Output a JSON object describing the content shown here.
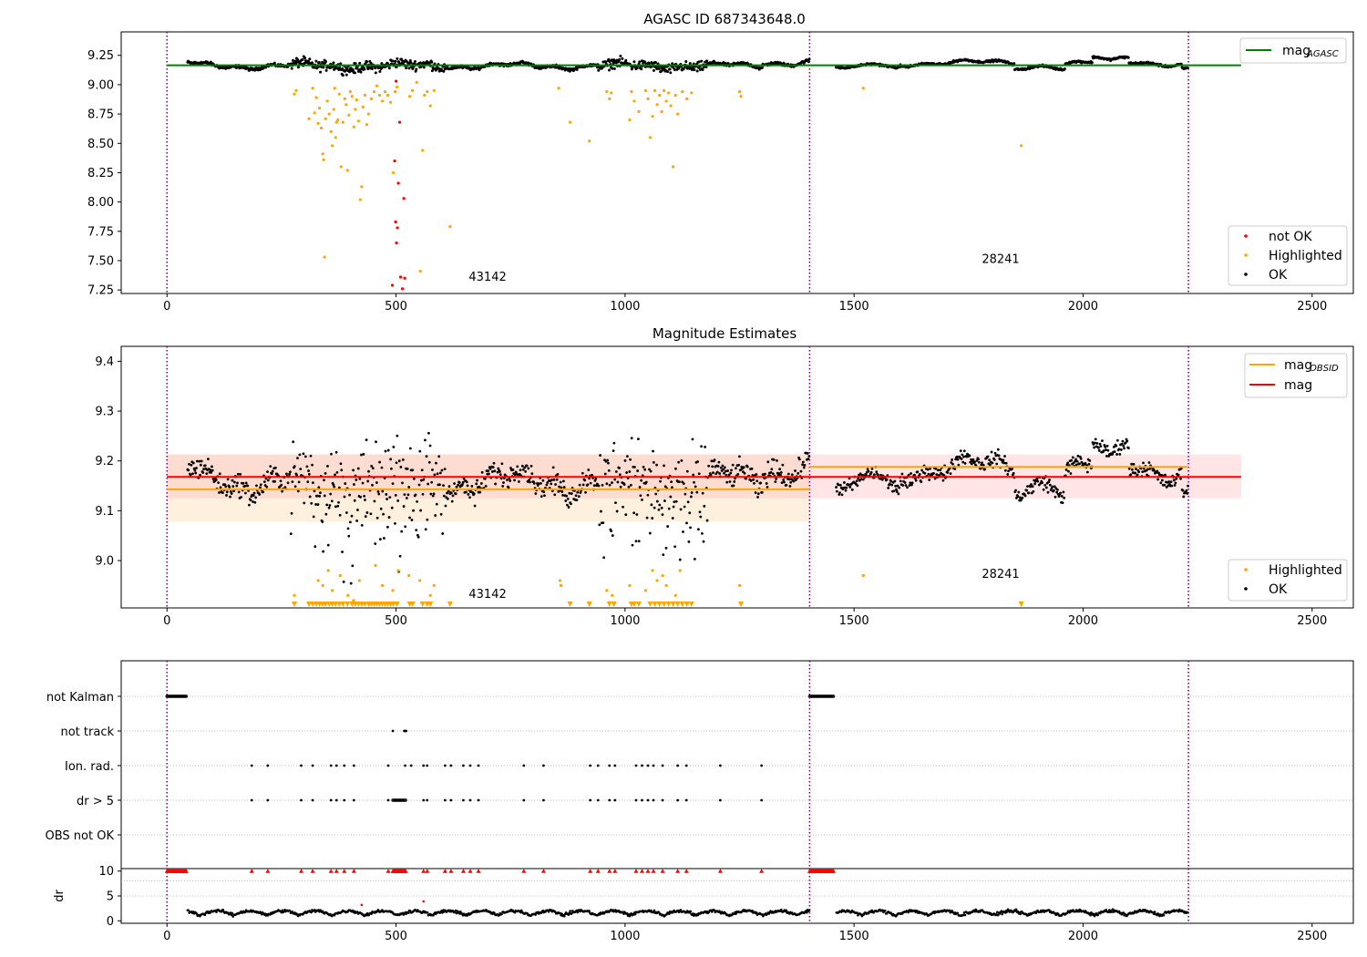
{
  "chart_data": [
    {
      "id": "panel1",
      "type": "scatter",
      "title": "AGASC ID 687343648.0",
      "xlim": [
        -100,
        2590
      ],
      "ylim": [
        7.22,
        9.45
      ],
      "xticks": [
        0,
        500,
        1000,
        1500,
        2000,
        2500
      ],
      "yticks": [
        7.25,
        7.5,
        7.75,
        8.0,
        8.25,
        8.5,
        8.75,
        9.0,
        9.25
      ],
      "ytick_labels": [
        "7.25",
        "7.50",
        "7.75",
        "8.00",
        "8.25",
        "8.50",
        "8.75",
        "9.00",
        "9.25"
      ],
      "obs_boundaries": [
        0,
        1403,
        2230
      ],
      "annotations": [
        {
          "text": "43142",
          "x": 700,
          "y": 7.33
        },
        {
          "text": "28241",
          "x": 1820,
          "y": 7.48
        }
      ],
      "lines": [
        {
          "name": "mag_AGASC",
          "color": "#008000",
          "x": [
            0,
            2345
          ],
          "y": [
            9.165,
            9.165
          ]
        }
      ],
      "legends": [
        {
          "loc": "upper right",
          "entries": [
            {
              "label": "mag",
              "sub": "AGASC",
              "kind": "line",
              "color": "#008000"
            }
          ]
        },
        {
          "loc": "lower right",
          "entries": [
            {
              "label": "not OK",
              "kind": "dot",
              "color": "#ff0000"
            },
            {
              "label": "Highlighted",
              "kind": "dot",
              "color": "#ffa500"
            },
            {
              "label": "OK",
              "kind": "dot",
              "color": "#000000"
            }
          ]
        }
      ],
      "series": [
        {
          "name": "not OK",
          "color": "#ff0000",
          "points": [
            [
              492,
              7.29
            ],
            [
              497,
              8.35
            ],
            [
              499,
              7.83
            ],
            [
              500,
              9.03
            ],
            [
              501,
              7.65
            ],
            [
              503,
              7.78
            ],
            [
              505,
              8.16
            ],
            [
              508,
              8.68
            ],
            [
              510,
              7.36
            ],
            [
              514,
              7.26
            ],
            [
              517,
              8.03
            ],
            [
              519,
              7.35
            ]
          ]
        },
        {
          "name": "Highlighted",
          "color": "#ffa500",
          "points": [
            [
              278,
              8.92
            ],
            [
              282,
              8.95
            ],
            [
              310,
              8.71
            ],
            [
              318,
              8.97
            ],
            [
              322,
              8.76
            ],
            [
              326,
              8.89
            ],
            [
              330,
              8.67
            ],
            [
              333,
              8.8
            ],
            [
              337,
              8.63
            ],
            [
              340,
              8.41
            ],
            [
              342,
              8.36
            ],
            [
              344,
              7.53
            ],
            [
              346,
              8.71
            ],
            [
              350,
              8.86
            ],
            [
              354,
              8.75
            ],
            [
              358,
              8.6
            ],
            [
              361,
              8.48
            ],
            [
              364,
              8.79
            ],
            [
              366,
              8.97
            ],
            [
              368,
              8.55
            ],
            [
              370,
              8.68
            ],
            [
              373,
              8.7
            ],
            [
              376,
              8.92
            ],
            [
              380,
              8.3
            ],
            [
              384,
              8.68
            ],
            [
              388,
              8.88
            ],
            [
              391,
              8.83
            ],
            [
              394,
              8.27
            ],
            [
              397,
              8.74
            ],
            [
              400,
              8.94
            ],
            [
              404,
              8.9
            ],
            [
              408,
              8.64
            ],
            [
              411,
              8.79
            ],
            [
              414,
              8.87
            ],
            [
              418,
              8.69
            ],
            [
              422,
              8.02
            ],
            [
              425,
              8.13
            ],
            [
              428,
              8.81
            ],
            [
              432,
              8.91
            ],
            [
              436,
              8.66
            ],
            [
              440,
              8.75
            ],
            [
              446,
              8.88
            ],
            [
              452,
              8.94
            ],
            [
              458,
              8.99
            ],
            [
              464,
              8.91
            ],
            [
              470,
              8.86
            ],
            [
              476,
              8.94
            ],
            [
              482,
              8.91
            ],
            [
              488,
              8.85
            ],
            [
              494,
              8.25
            ],
            [
              498,
              8.94
            ],
            [
              502,
              8.98
            ],
            [
              530,
              8.9
            ],
            [
              536,
              8.95
            ],
            [
              545,
              9.02
            ],
            [
              553,
              7.41
            ],
            [
              558,
              8.44
            ],
            [
              562,
              8.91
            ],
            [
              568,
              8.94
            ],
            [
              575,
              8.82
            ],
            [
              583,
              8.95
            ],
            [
              618,
              7.79
            ],
            [
              855,
              8.97
            ],
            [
              880,
              8.68
            ],
            [
              922,
              8.52
            ],
            [
              960,
              8.94
            ],
            [
              966,
              8.88
            ],
            [
              970,
              8.93
            ],
            [
              1010,
              8.7
            ],
            [
              1014,
              8.94
            ],
            [
              1020,
              8.86
            ],
            [
              1030,
              8.77
            ],
            [
              1045,
              8.95
            ],
            [
              1050,
              8.88
            ],
            [
              1055,
              8.55
            ],
            [
              1060,
              8.73
            ],
            [
              1065,
              8.95
            ],
            [
              1070,
              8.83
            ],
            [
              1075,
              8.91
            ],
            [
              1080,
              8.77
            ],
            [
              1085,
              8.95
            ],
            [
              1090,
              8.86
            ],
            [
              1095,
              8.93
            ],
            [
              1100,
              8.82
            ],
            [
              1105,
              8.3
            ],
            [
              1110,
              8.91
            ],
            [
              1115,
              8.75
            ],
            [
              1125,
              8.94
            ],
            [
              1135,
              8.88
            ],
            [
              1145,
              8.93
            ],
            [
              1250,
              8.94
            ],
            [
              1253,
              8.9
            ],
            [
              1520,
              8.97
            ],
            [
              1865,
              8.48
            ]
          ]
        }
      ],
      "ok_series": {
        "name": "OK",
        "color": "#000000"
      }
    },
    {
      "id": "panel2",
      "type": "scatter",
      "title": "Magnitude Estimates",
      "xlim": [
        -100,
        2590
      ],
      "ylim": [
        8.905,
        9.43
      ],
      "xticks": [
        0,
        500,
        1000,
        1500,
        2000,
        2500
      ],
      "yticks": [
        9.0,
        9.1,
        9.2,
        9.3,
        9.4
      ],
      "ytick_labels": [
        "9.0",
        "9.1",
        "9.2",
        "9.3",
        "9.4"
      ],
      "obs_boundaries": [
        0,
        1403,
        2230
      ],
      "annotations": [
        {
          "text": "43142",
          "x": 700,
          "y": 8.925
        },
        {
          "text": "28241",
          "x": 1820,
          "y": 8.965
        }
      ],
      "bands": [
        {
          "x": [
            0,
            1403
          ],
          "y": [
            9.078,
            9.213
          ],
          "color": "#fdebd5"
        },
        {
          "x": [
            0,
            2345
          ],
          "y": [
            9.125,
            9.213
          ],
          "color": "#ffd4cf"
        },
        {
          "x": [
            1403,
            2345
          ],
          "y": [
            9.125,
            9.213
          ],
          "color": "#ffe0e0"
        }
      ],
      "lines": [
        {
          "name": "mag_OBSID",
          "color": "#ffa500",
          "x": [
            0,
            1403
          ],
          "y": [
            9.143,
            9.143
          ]
        },
        {
          "name": "mag_OBSID",
          "color": "#ffa500",
          "x": [
            1403,
            2230
          ],
          "y": [
            9.188,
            9.188
          ]
        },
        {
          "name": "mag",
          "color": "#ff0000",
          "x": [
            0,
            2345
          ],
          "y": [
            9.168,
            9.168
          ]
        }
      ],
      "legends": [
        {
          "loc": "upper right",
          "entries": [
            {
              "label": "mag",
              "sub": "OBSID",
              "kind": "line",
              "color": "#ffa500"
            },
            {
              "label": "mag",
              "sub": "",
              "kind": "line",
              "color": "#ff0000"
            }
          ]
        },
        {
          "loc": "lower right",
          "entries": [
            {
              "label": "Highlighted",
              "kind": "dot",
              "color": "#ffa500"
            },
            {
              "label": "OK",
              "kind": "dot",
              "color": "#000000"
            }
          ]
        }
      ],
      "highlight_points": [
        [
          278,
          8.93
        ],
        [
          330,
          8.96
        ],
        [
          340,
          8.95
        ],
        [
          352,
          8.98
        ],
        [
          361,
          8.94
        ],
        [
          378,
          8.97
        ],
        [
          395,
          8.93
        ],
        [
          407,
          8.92
        ],
        [
          420,
          8.96
        ],
        [
          455,
          8.99
        ],
        [
          470,
          8.95
        ],
        [
          493,
          8.94
        ],
        [
          505,
          8.98
        ],
        [
          528,
          8.97
        ],
        [
          552,
          8.96
        ],
        [
          575,
          8.93
        ],
        [
          583,
          8.95
        ],
        [
          858,
          8.96
        ],
        [
          860,
          8.95
        ],
        [
          960,
          8.94
        ],
        [
          972,
          8.93
        ],
        [
          1010,
          8.95
        ],
        [
          1045,
          8.94
        ],
        [
          1060,
          8.98
        ],
        [
          1070,
          8.96
        ],
        [
          1082,
          8.97
        ],
        [
          1090,
          8.95
        ],
        [
          1110,
          8.93
        ],
        [
          1120,
          8.98
        ],
        [
          1250,
          8.95
        ],
        [
          1520,
          8.97
        ]
      ],
      "clipped_triangles_x": [
        278,
        310,
        318,
        326,
        333,
        340,
        346,
        354,
        361,
        368,
        376,
        384,
        394,
        404,
        411,
        418,
        425,
        432,
        440,
        446,
        452,
        458,
        464,
        470,
        476,
        482,
        488,
        494,
        502,
        530,
        536,
        558,
        568,
        575,
        618,
        880,
        922,
        966,
        976,
        1014,
        1020,
        1030,
        1055,
        1065,
        1075,
        1085,
        1095,
        1105,
        1115,
        1125,
        1135,
        1145,
        1253,
        1865
      ],
      "ok_series": {
        "name": "OK",
        "color": "#000000"
      }
    },
    {
      "id": "panel3",
      "type": "scatter",
      "xlim": [
        -100,
        2590
      ],
      "categories": [
        "not Kalman",
        "not track",
        "Ion. rad.",
        "dr > 5",
        "OBS not OK"
      ],
      "obs_boundaries": [
        0,
        1403,
        2230
      ],
      "flags": {
        "not Kalman": {
          "ranges": [
            [
              0,
              42
            ],
            [
              1403,
              1455
            ]
          ]
        },
        "not track": {
          "x": [
            493,
            518,
            520,
            522
          ]
        },
        "Ion. rad.": {
          "x": [
            185,
            220,
            293,
            318,
            358,
            370,
            387,
            408,
            483,
            520,
            533,
            560,
            568,
            607,
            620,
            647,
            662,
            680,
            779,
            822,
            924,
            941,
            966,
            978,
            1024,
            1037,
            1050,
            1062,
            1082,
            1115,
            1134,
            1208,
            1298
          ]
        },
        "dr > 5": {
          "x": [
            185,
            220,
            293,
            318,
            358,
            370,
            387,
            408,
            483,
            560,
            568,
            607,
            620,
            647,
            662,
            680,
            779,
            822,
            924,
            941,
            966,
            978,
            1024,
            1037,
            1050,
            1062,
            1082,
            1115,
            1134,
            1208,
            1298
          ],
          "ranges": [
            [
              493,
              522
            ]
          ]
        },
        "OBS not OK": {
          "x": []
        }
      }
    },
    {
      "id": "panel4",
      "type": "scatter",
      "ylabel": "dr",
      "xlim": [
        -100,
        2590
      ],
      "ylim": [
        -0.5,
        10.5
      ],
      "xticks": [
        0,
        500,
        1000,
        1500,
        2000,
        2500
      ],
      "yticks": [
        0,
        5,
        10
      ],
      "ytick_labels": [
        "0",
        "5",
        "10"
      ],
      "obs_boundaries": [
        0,
        1403,
        2230
      ],
      "capped_x": [
        185,
        220,
        293,
        318,
        358,
        370,
        387,
        408,
        483,
        560,
        568,
        607,
        620,
        647,
        662,
        680,
        779,
        822,
        924,
        941,
        966,
        978,
        1024,
        1037,
        1050,
        1062,
        1082,
        1115,
        1134,
        1208,
        1298
      ],
      "capped_ranges": [
        [
          0,
          42
        ],
        [
          493,
          522
        ],
        [
          1403,
          1455
        ]
      ],
      "red_points": [
        [
          425,
          3.2
        ],
        [
          560,
          3.9
        ]
      ]
    }
  ]
}
